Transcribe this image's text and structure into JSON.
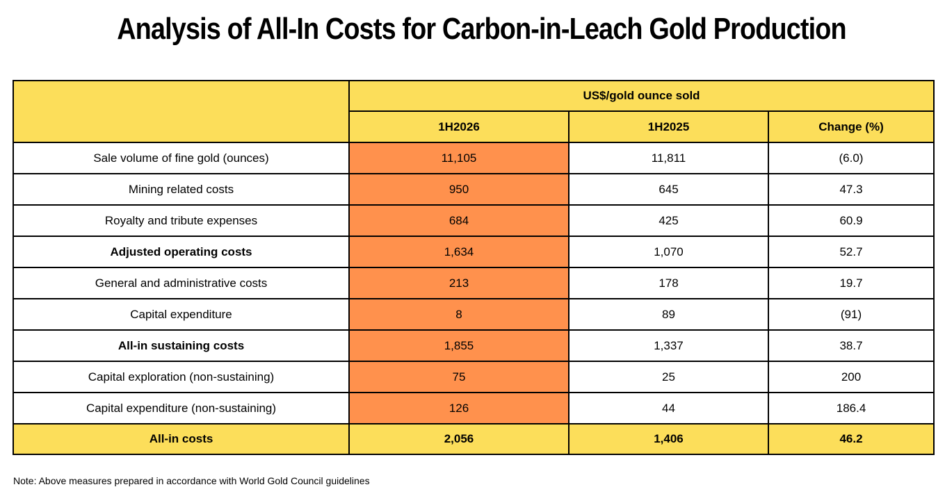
{
  "title": "Analysis of All-In Costs for Carbon-in-Leach Gold Production",
  "table": {
    "group_header": "US$/gold ounce sold",
    "columns": [
      "1H2026",
      "1H2025",
      "Change (%)"
    ],
    "rows": [
      {
        "label": "Sale volume of fine gold (ounces)",
        "values": [
          "11,105",
          "11,811",
          "(6.0)"
        ],
        "bold": false
      },
      {
        "label": "Mining related costs",
        "values": [
          "950",
          "645",
          "47.3"
        ],
        "bold": false
      },
      {
        "label": "Royalty and tribute expenses",
        "values": [
          "684",
          "425",
          "60.9"
        ],
        "bold": false
      },
      {
        "label": "Adjusted operating costs",
        "values": [
          "1,634",
          "1,070",
          "52.7"
        ],
        "bold": true
      },
      {
        "label": "General and administrative costs",
        "values": [
          "213",
          "178",
          "19.7"
        ],
        "bold": false
      },
      {
        "label": "Capital expenditure",
        "values": [
          "8",
          "89",
          "(91)"
        ],
        "bold": false
      },
      {
        "label": "All-in sustaining costs",
        "values": [
          "1,855",
          "1,337",
          "38.7"
        ],
        "bold": true
      },
      {
        "label": "Capital exploration (non-sustaining)",
        "values": [
          "75",
          "25",
          "200"
        ],
        "bold": false
      },
      {
        "label": "Capital expenditure (non-sustaining)",
        "values": [
          "126",
          "44",
          "186.4"
        ],
        "bold": false
      }
    ],
    "total": {
      "label": "All-in costs",
      "values": [
        "2,056",
        "1,406",
        "46.2"
      ]
    }
  },
  "note": "Note: Above measures prepared in accordance with World Gold Council guidelines",
  "colors": {
    "header_fill": "#fcde5a",
    "highlight_column": "#ff914d",
    "border": "#000000"
  }
}
